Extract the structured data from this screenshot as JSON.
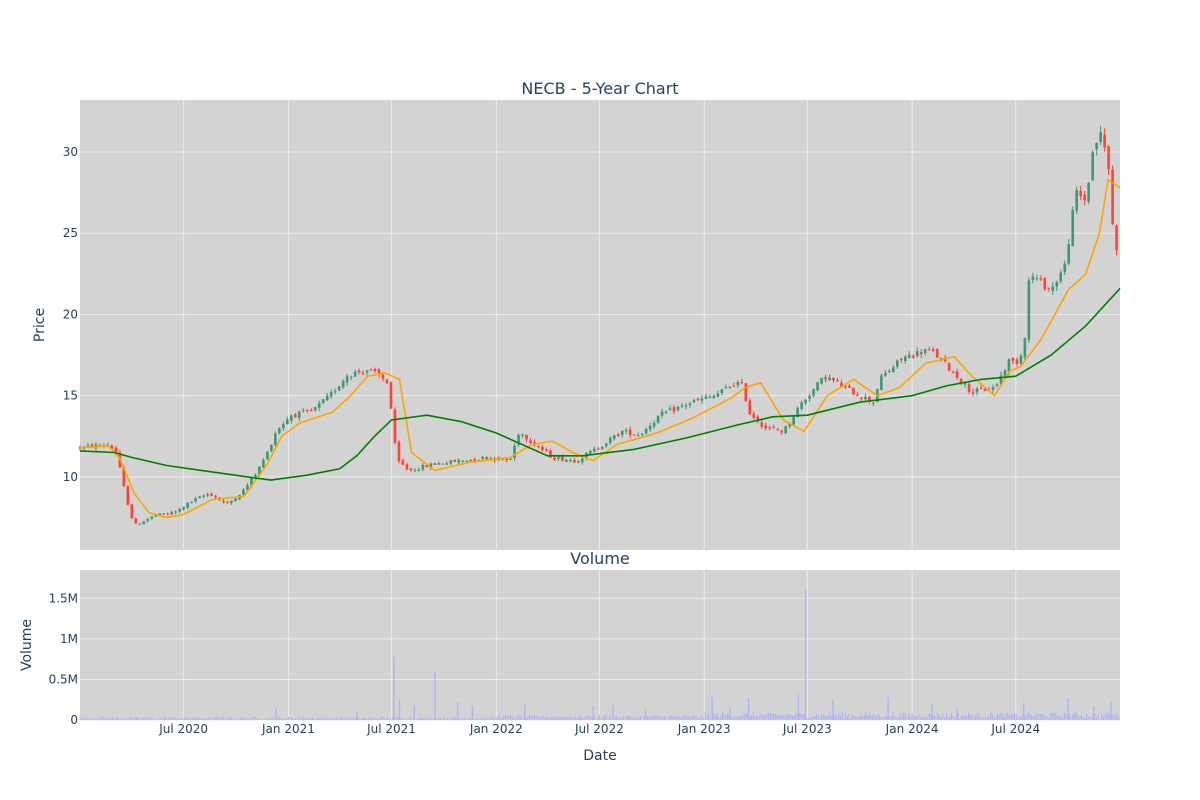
{
  "chart_data": [
    {
      "type": "candlestick",
      "title": "NECB - 5-Year Chart",
      "ylabel": "Price",
      "xlim": [
        "2020-01-01",
        "2024-12-31"
      ],
      "ylim": [
        5.5,
        33.2
      ],
      "yticks": [
        10,
        15,
        20,
        25,
        30
      ],
      "grid": true,
      "colors": {
        "increasing": "#3d9970",
        "decreasing": "#ff4136",
        "ma_short": "#ffa500",
        "ma_long": "#008000",
        "plot_bg": "#d3d3d3",
        "grid": "#ebebeb"
      },
      "price_path": {
        "x": [
          "2020-01-01",
          "2020-02-20",
          "2020-03-05",
          "2020-03-20",
          "2020-04-05",
          "2020-05-10",
          "2020-06-15",
          "2020-07-15",
          "2020-08-15",
          "2020-09-15",
          "2020-10-15",
          "2020-11-10",
          "2020-11-25",
          "2020-12-10",
          "2021-01-05",
          "2021-02-10",
          "2021-03-15",
          "2021-04-15",
          "2021-05-20",
          "2021-06-10",
          "2021-06-25",
          "2021-07-10",
          "2021-08-01",
          "2021-09-15",
          "2021-11-01",
          "2021-12-15",
          "2022-01-25",
          "2022-02-10",
          "2022-03-10",
          "2022-04-10",
          "2022-05-20",
          "2022-06-20",
          "2022-08-10",
          "2022-09-10",
          "2022-10-15",
          "2022-12-10",
          "2023-01-20",
          "2023-02-25",
          "2023-03-10",
          "2023-03-20",
          "2023-04-20",
          "2023-05-20",
          "2023-06-20",
          "2023-08-01",
          "2023-09-20",
          "2023-10-25",
          "2023-11-05",
          "2023-12-15",
          "2024-01-25",
          "2024-02-10",
          "2024-03-25",
          "2024-04-15",
          "2024-05-25",
          "2024-06-20",
          "2024-07-01",
          "2024-07-15",
          "2024-07-25",
          "2024-09-01",
          "2024-09-25",
          "2024-10-15",
          "2024-11-01",
          "2024-11-15",
          "2024-11-28",
          "2024-12-10",
          "2024-12-20",
          "2024-12-31"
        ],
        "y": [
          11.8,
          12.0,
          11.5,
          9.0,
          7.0,
          7.6,
          7.8,
          8.5,
          9.0,
          8.3,
          9.2,
          10.5,
          11.5,
          12.8,
          13.8,
          14.0,
          15.0,
          16.3,
          16.6,
          16.2,
          15.8,
          11.0,
          10.4,
          10.8,
          11.0,
          11.2,
          11.0,
          12.8,
          12.0,
          11.2,
          11.0,
          11.6,
          12.8,
          12.6,
          13.8,
          14.6,
          15.0,
          15.8,
          15.6,
          14.0,
          13.0,
          12.8,
          14.5,
          16.2,
          15.2,
          14.6,
          16.0,
          17.3,
          17.8,
          17.6,
          16.0,
          15.2,
          15.5,
          17.2,
          17.0,
          17.8,
          22.5,
          21.5,
          23.0,
          27.5,
          27.0,
          30.5,
          31.0,
          29.5,
          24.5,
          23.8
        ]
      },
      "series": [
        {
          "x": [
            "2020-01-01",
            "2020-02-20",
            "2020-03-10",
            "2020-04-05",
            "2020-05-01",
            "2020-06-01",
            "2020-07-01",
            "2020-08-20",
            "2020-10-15",
            "2020-11-25",
            "2020-12-20",
            "2021-01-20",
            "2021-03-20",
            "2021-04-20",
            "2021-05-20",
            "2021-06-20",
            "2021-07-15",
            "2021-08-05",
            "2021-09-15",
            "2021-11-15",
            "2022-01-25",
            "2022-03-05",
            "2022-04-10",
            "2022-05-15",
            "2022-06-20",
            "2022-08-01",
            "2022-10-10",
            "2022-12-10",
            "2023-02-15",
            "2023-03-15",
            "2023-04-10",
            "2023-05-20",
            "2023-06-25",
            "2023-08-05",
            "2023-09-20",
            "2023-11-01",
            "2023-12-10",
            "2024-01-25",
            "2024-03-15",
            "2024-04-15",
            "2024-05-25",
            "2024-06-20",
            "2024-07-10",
            "2024-08-15",
            "2024-10-01",
            "2024-11-01",
            "2024-11-25",
            "2024-12-10",
            "2024-12-31"
          ],
          "y": [
            11.8,
            11.9,
            11.2,
            9.0,
            7.8,
            7.5,
            7.7,
            8.6,
            8.8,
            10.8,
            12.5,
            13.3,
            14.0,
            15.0,
            16.2,
            16.4,
            16.0,
            11.5,
            10.4,
            10.9,
            11.2,
            12.0,
            12.2,
            11.5,
            11.0,
            12.0,
            12.7,
            13.6,
            14.8,
            15.5,
            15.8,
            13.5,
            12.8,
            15.0,
            16.0,
            15.0,
            15.5,
            17.0,
            17.4,
            16.2,
            15.0,
            16.5,
            16.8,
            18.5,
            21.5,
            22.5,
            25.0,
            28.3,
            27.8
          ]
        },
        {
          "x": [
            "2020-01-01",
            "2020-03-01",
            "2020-04-01",
            "2020-06-01",
            "2020-08-01",
            "2020-10-01",
            "2020-12-01",
            "2021-02-01",
            "2021-04-01",
            "2021-05-01",
            "2021-06-01",
            "2021-07-01",
            "2021-09-01",
            "2021-11-01",
            "2022-01-01",
            "2022-04-01",
            "2022-06-01",
            "2022-09-01",
            "2022-12-01",
            "2023-03-01",
            "2023-05-01",
            "2023-07-01",
            "2023-10-01",
            "2024-01-01",
            "2024-03-01",
            "2024-05-01",
            "2024-07-01",
            "2024-09-01",
            "2024-11-01",
            "2024-12-31"
          ],
          "y": [
            11.6,
            11.5,
            11.2,
            10.7,
            10.4,
            10.1,
            9.8,
            10.1,
            10.5,
            11.3,
            12.5,
            13.5,
            13.8,
            13.4,
            12.7,
            11.3,
            11.3,
            11.7,
            12.4,
            13.2,
            13.7,
            13.8,
            14.6,
            15.0,
            15.6,
            16.0,
            16.2,
            17.5,
            19.3,
            21.6
          ]
        }
      ]
    },
    {
      "type": "bar",
      "title": "Volume",
      "xlabel": "Date",
      "ylabel": "Volume",
      "xlim": [
        "2020-01-01",
        "2024-12-31"
      ],
      "ylim": [
        0,
        1850000
      ],
      "yticks": [
        0,
        500000,
        1000000,
        1500000
      ],
      "ytick_labels": [
        "0",
        "0.5M",
        "1M",
        "1.5M"
      ],
      "xtick_labels": [
        "Jul 2020",
        "Jan 2021",
        "Jul 2021",
        "Jan 2022",
        "Jul 2022",
        "Jan 2023",
        "Jul 2023",
        "Jan 2024",
        "Jul 2024"
      ],
      "xtick_dates": [
        "2020-07-01",
        "2021-01-01",
        "2021-07-01",
        "2022-01-01",
        "2022-07-01",
        "2023-01-01",
        "2023-07-01",
        "2024-01-01",
        "2024-07-01"
      ],
      "grid": true,
      "colors": {
        "bar": "#b3b3f0",
        "plot_bg": "#d3d3d3",
        "grid": "#ebebeb"
      },
      "spikes": [
        {
          "date": "2020-12-10",
          "value": 150000
        },
        {
          "date": "2021-05-01",
          "value": 100000
        },
        {
          "date": "2021-07-05",
          "value": 780000
        },
        {
          "date": "2021-07-15",
          "value": 250000
        },
        {
          "date": "2021-08-10",
          "value": 180000
        },
        {
          "date": "2021-09-15",
          "value": 600000
        },
        {
          "date": "2021-10-25",
          "value": 220000
        },
        {
          "date": "2021-11-20",
          "value": 180000
        },
        {
          "date": "2022-02-20",
          "value": 210000
        },
        {
          "date": "2022-06-20",
          "value": 170000
        },
        {
          "date": "2022-07-25",
          "value": 180000
        },
        {
          "date": "2022-09-20",
          "value": 140000
        },
        {
          "date": "2023-01-15",
          "value": 280000
        },
        {
          "date": "2023-02-15",
          "value": 160000
        },
        {
          "date": "2023-03-20",
          "value": 270000
        },
        {
          "date": "2023-06-15",
          "value": 330000
        },
        {
          "date": "2023-06-28",
          "value": 1600000
        },
        {
          "date": "2023-08-15",
          "value": 250000
        },
        {
          "date": "2023-11-20",
          "value": 280000
        },
        {
          "date": "2024-02-05",
          "value": 190000
        },
        {
          "date": "2024-03-20",
          "value": 140000
        },
        {
          "date": "2024-07-15",
          "value": 210000
        },
        {
          "date": "2024-10-01",
          "value": 270000
        },
        {
          "date": "2024-11-15",
          "value": 170000
        },
        {
          "date": "2024-12-15",
          "value": 220000
        }
      ]
    }
  ]
}
